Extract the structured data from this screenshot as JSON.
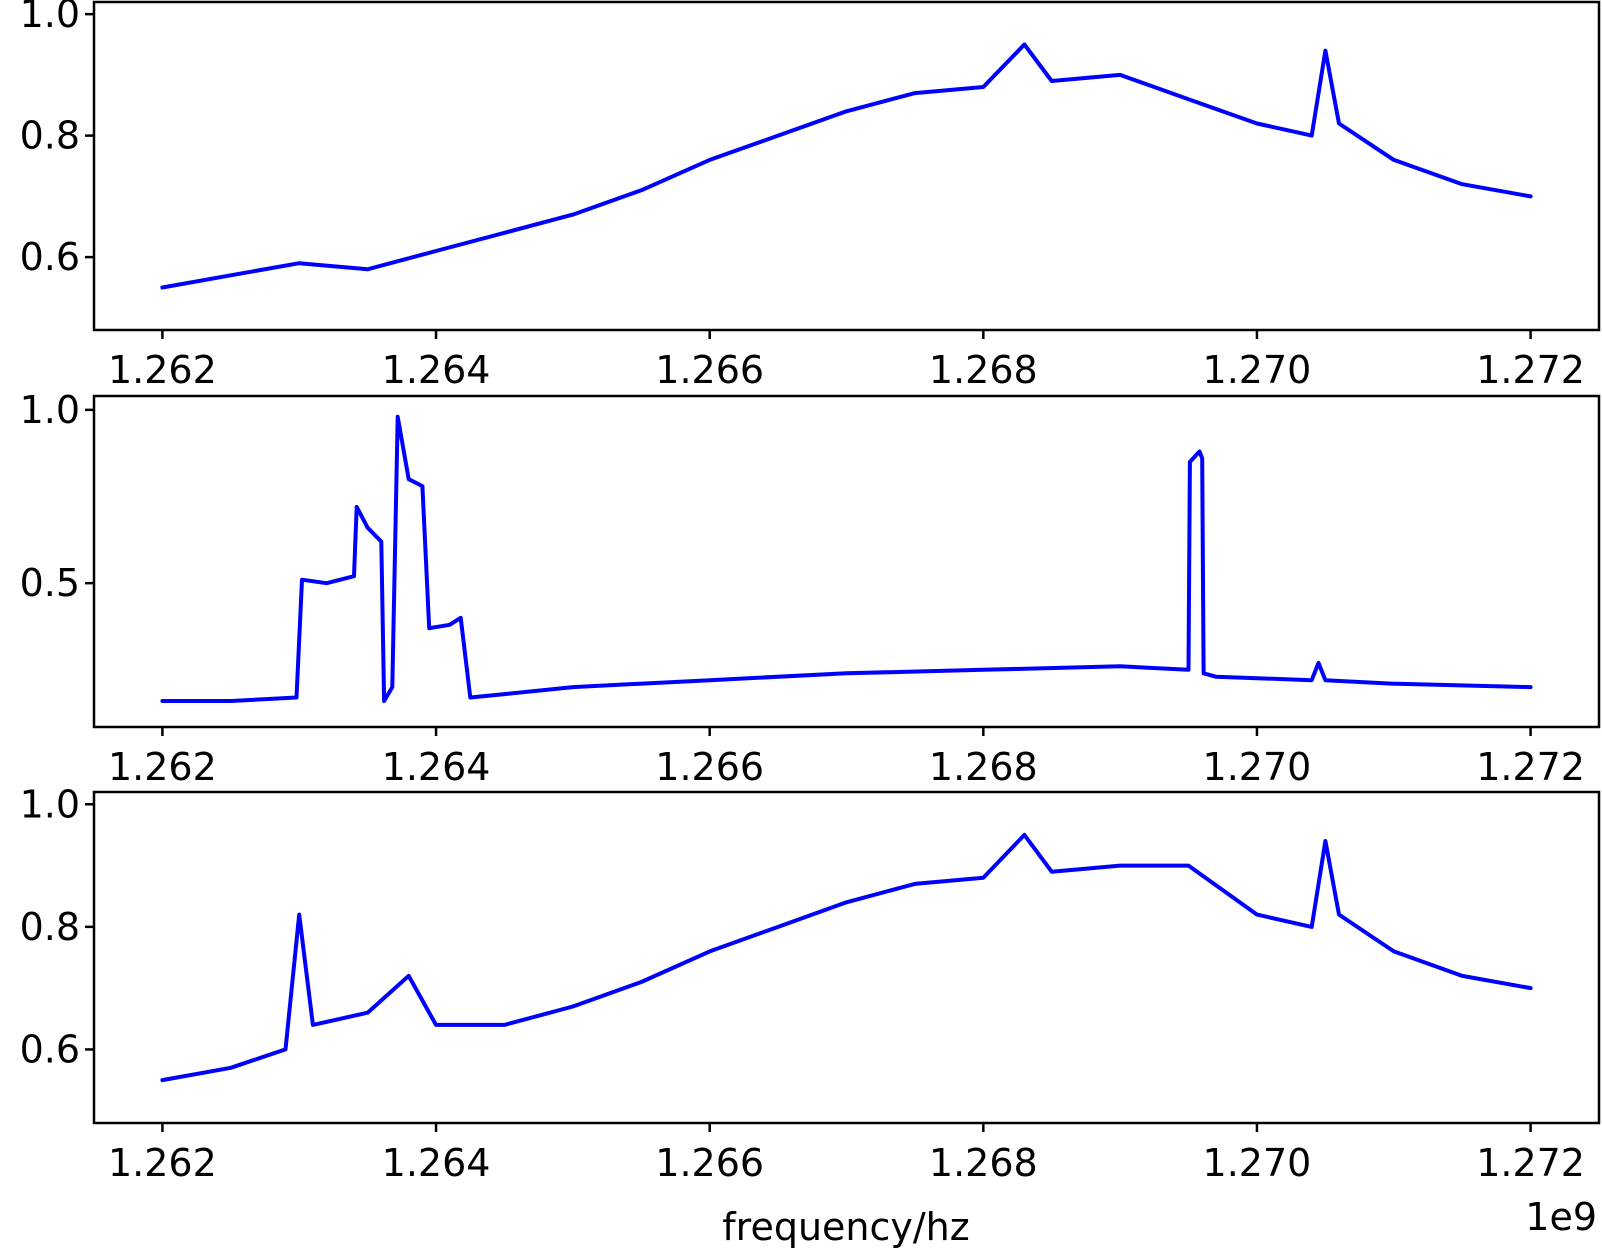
{
  "figure": {
    "xlabel": "frequency/hz",
    "offset_text": "1e9",
    "line_color": "#0000ff"
  },
  "chart_data": [
    {
      "type": "line",
      "xlim": [
        1.2615,
        1.2725
      ],
      "ylim": [
        0.48,
        1.02
      ],
      "xticks": [
        1.262,
        1.264,
        1.266,
        1.268,
        1.27,
        1.272
      ],
      "xtick_labels": [
        "1.262",
        "1.264",
        "1.266",
        "1.268",
        "1.270",
        "1.272"
      ],
      "yticks": [
        0.6,
        0.8,
        1.0
      ],
      "ytick_labels": [
        "0.6",
        "0.8",
        "1.0"
      ],
      "series": [
        {
          "x": [
            1.262,
            1.2625,
            1.263,
            1.2635,
            1.264,
            1.2645,
            1.265,
            1.2655,
            1.266,
            1.2665,
            1.267,
            1.2675,
            1.268,
            1.2683,
            1.2685,
            1.269,
            1.2695,
            1.27,
            1.2704,
            1.2705,
            1.2706,
            1.271,
            1.2715,
            1.272
          ],
          "y": [
            0.55,
            0.57,
            0.59,
            0.58,
            0.61,
            0.64,
            0.67,
            0.71,
            0.76,
            0.8,
            0.84,
            0.87,
            0.88,
            0.95,
            0.89,
            0.9,
            0.86,
            0.82,
            0.8,
            0.94,
            0.82,
            0.76,
            0.72,
            0.7
          ]
        }
      ]
    },
    {
      "type": "line",
      "xlim": [
        1.2615,
        1.2725
      ],
      "ylim": [
        0.085,
        1.04
      ],
      "xticks": [
        1.262,
        1.264,
        1.266,
        1.268,
        1.27,
        1.272
      ],
      "xtick_labels": [
        "1.262",
        "1.264",
        "1.266",
        "1.268",
        "1.270",
        "1.272"
      ],
      "yticks": [
        0.5,
        1.0
      ],
      "ytick_labels": [
        "0.5",
        "1.0"
      ],
      "series": [
        {
          "x": [
            1.262,
            1.2625,
            1.26298,
            1.26302,
            1.2632,
            1.2634,
            1.26342,
            1.2635,
            1.2636,
            1.26362,
            1.26368,
            1.26372,
            1.2638,
            1.2639,
            1.26395,
            1.2641,
            1.26418,
            1.26425,
            1.2645,
            1.265,
            1.266,
            1.267,
            1.268,
            1.269,
            1.2695,
            1.26951,
            1.26958,
            1.2696,
            1.26961,
            1.2697,
            1.2704,
            1.27045,
            1.2705,
            1.271,
            1.272
          ],
          "y": [
            0.16,
            0.16,
            0.17,
            0.51,
            0.5,
            0.52,
            0.72,
            0.66,
            0.62,
            0.16,
            0.2,
            0.98,
            0.8,
            0.78,
            0.37,
            0.38,
            0.4,
            0.17,
            0.18,
            0.2,
            0.22,
            0.24,
            0.25,
            0.26,
            0.25,
            0.85,
            0.88,
            0.86,
            0.24,
            0.23,
            0.22,
            0.27,
            0.22,
            0.21,
            0.2
          ]
        }
      ]
    },
    {
      "type": "line",
      "xlim": [
        1.2615,
        1.2725
      ],
      "ylim": [
        0.48,
        1.02
      ],
      "xticks": [
        1.262,
        1.264,
        1.266,
        1.268,
        1.27,
        1.272
      ],
      "xtick_labels": [
        "1.262",
        "1.264",
        "1.266",
        "1.268",
        "1.270",
        "1.272"
      ],
      "yticks": [
        0.6,
        0.8,
        1.0
      ],
      "ytick_labels": [
        "0.6",
        "0.8",
        "1.0"
      ],
      "series": [
        {
          "x": [
            1.262,
            1.2625,
            1.2629,
            1.263,
            1.2631,
            1.2635,
            1.2638,
            1.264,
            1.2645,
            1.265,
            1.2655,
            1.266,
            1.2665,
            1.267,
            1.2675,
            1.268,
            1.2683,
            1.2685,
            1.269,
            1.2695,
            1.27,
            1.2704,
            1.2705,
            1.2706,
            1.271,
            1.2715,
            1.272
          ],
          "y": [
            0.55,
            0.57,
            0.6,
            0.82,
            0.64,
            0.66,
            0.72,
            0.64,
            0.64,
            0.67,
            0.71,
            0.76,
            0.8,
            0.84,
            0.87,
            0.88,
            0.95,
            0.89,
            0.9,
            0.9,
            0.82,
            0.8,
            0.94,
            0.82,
            0.76,
            0.72,
            0.7
          ]
        }
      ]
    }
  ]
}
